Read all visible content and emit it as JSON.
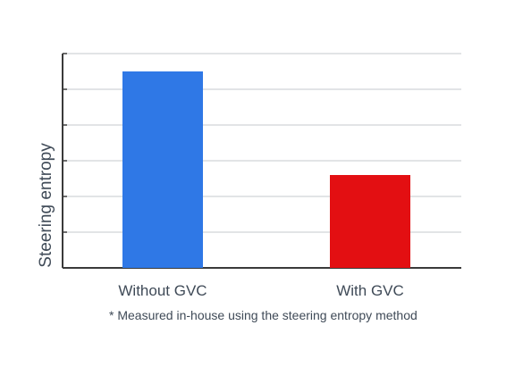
{
  "chart_data": {
    "type": "bar",
    "categories": [
      "Without GVC",
      "With GVC"
    ],
    "values": [
      5.5,
      2.6
    ],
    "colors": [
      "#2f78e6",
      "#e30f12"
    ],
    "title": "",
    "xlabel": "",
    "ylabel": "Steering entropy",
    "ylim": [
      0,
      6
    ],
    "ytick_count": 6,
    "show_tick_labels": false,
    "grid": true,
    "legend": "none",
    "footnote": "* Measured in-house using the steering entropy method"
  }
}
